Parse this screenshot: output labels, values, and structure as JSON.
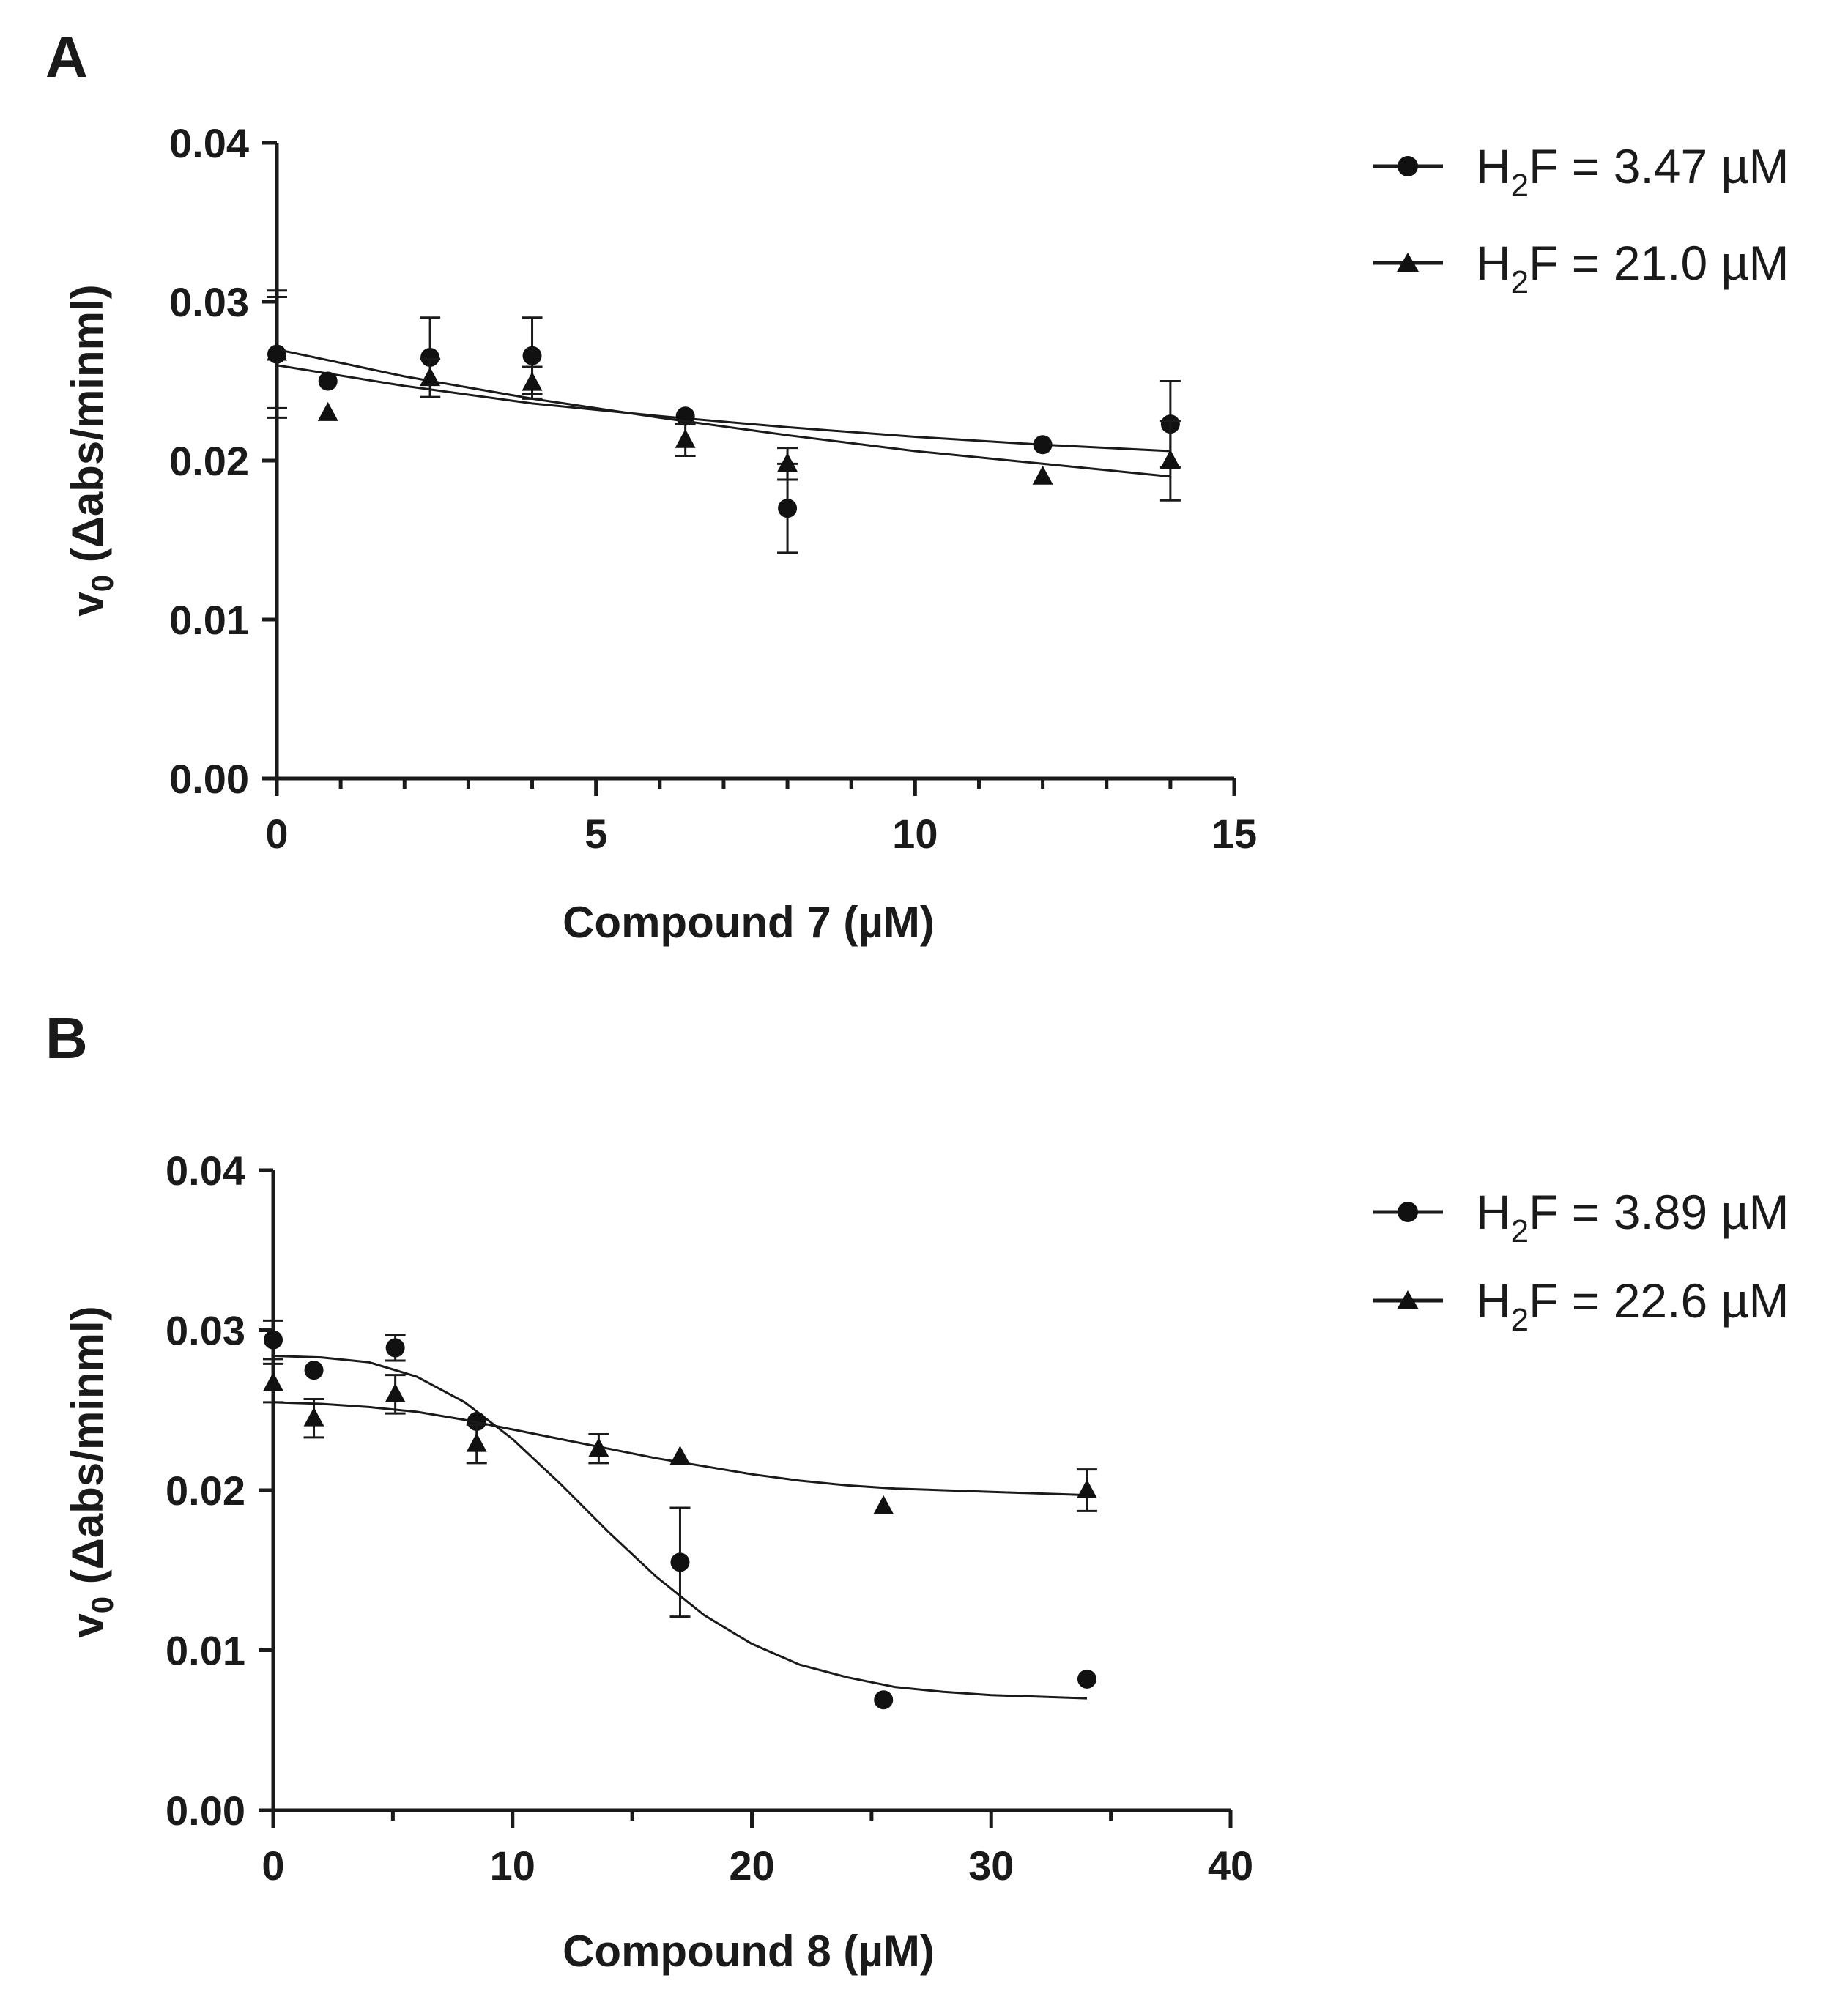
{
  "chart_data": [
    {
      "panel": "A",
      "type": "scatter",
      "xlabel": "Compound 7 (µM)",
      "ylabel": "v0 (Δabs/minml)",
      "ylabel_main": "v",
      "ylabel_sub": "0",
      "ylabel_rest": " (Δabs/minml)",
      "xlim": [
        0,
        15
      ],
      "ylim": [
        0,
        0.04
      ],
      "x_ticks": [
        0,
        5,
        10,
        15
      ],
      "x_tick_labels": [
        "0",
        "5",
        "10",
        "15"
      ],
      "x_minor_ticks": [
        1,
        2,
        3,
        4,
        6,
        7,
        8,
        9,
        11,
        12,
        13,
        14
      ],
      "y_ticks": [
        0,
        0.01,
        0.02,
        0.03,
        0.04
      ],
      "y_tick_labels": [
        "0.00",
        "0.01",
        "0.02",
        "0.03",
        "0.04"
      ],
      "legend_position": "right",
      "series": [
        {
          "name": "H2F = 3.47 µM",
          "legend_main": "H",
          "legend_sub": "2",
          "legend_rest": "F = 3.47 µM",
          "marker": "circle",
          "x": [
            0,
            0.8,
            2.4,
            4.0,
            6.4,
            8.0,
            12.0,
            14.0
          ],
          "y": [
            0.0267,
            0.025,
            0.0265,
            0.0266,
            0.0228,
            0.017,
            0.021,
            0.0223
          ],
          "err": [
            0.004,
            0,
            0.0025,
            0.0024,
            0,
            0.0028,
            0,
            0.0027
          ],
          "fit": {
            "x": [
              0,
              2,
              4,
              6,
              8,
              10,
              12,
              14
            ],
            "y": [
              0.026,
              0.0247,
              0.0236,
              0.0228,
              0.0221,
              0.0215,
              0.021,
              0.0206
            ]
          }
        },
        {
          "name": "H2F = 21.0 µM",
          "legend_main": "H",
          "legend_sub": "2",
          "legend_rest": "F = 21.0 µM",
          "marker": "triangle",
          "x": [
            0,
            0.8,
            2.4,
            4.0,
            6.4,
            8.0,
            12.0,
            14.0
          ],
          "y": [
            0.0268,
            0.023,
            0.0252,
            0.0249,
            0.0213,
            0.0198,
            0.019,
            0.02
          ],
          "err": [
            0.0035,
            0,
            0.0012,
            0.001,
            0.001,
            0.001,
            0,
            0.0025
          ],
          "fit": {
            "x": [
              0,
              2,
              4,
              6,
              8,
              10,
              12,
              14
            ],
            "y": [
              0.027,
              0.0253,
              0.0239,
              0.0227,
              0.0216,
              0.0206,
              0.0198,
              0.019
            ]
          }
        }
      ]
    },
    {
      "panel": "B",
      "type": "scatter",
      "xlabel": "Compound 8 (µM)",
      "ylabel": "v0 (Δabs/minml)",
      "ylabel_main": "v",
      "ylabel_sub": "0",
      "ylabel_rest": " (Δabs/minml)",
      "xlim": [
        0,
        40
      ],
      "ylim": [
        0,
        0.04
      ],
      "x_ticks": [
        0,
        10,
        20,
        30,
        40
      ],
      "x_tick_labels": [
        "0",
        "10",
        "20",
        "30",
        "40"
      ],
      "x_minor_ticks": [
        5,
        15,
        25,
        35
      ],
      "y_ticks": [
        0,
        0.01,
        0.02,
        0.03,
        0.04
      ],
      "y_tick_labels": [
        "0.00",
        "0.01",
        "0.02",
        "0.03",
        "0.04"
      ],
      "legend_position": "right",
      "series": [
        {
          "name": "H2F = 3.89 µM",
          "legend_main": "H",
          "legend_sub": "2",
          "legend_rest": "F = 3.89 µM",
          "marker": "circle",
          "x": [
            0,
            1.7,
            5.1,
            8.5,
            17.0,
            25.5,
            34.0
          ],
          "y": [
            0.0294,
            0.0275,
            0.0289,
            0.0243,
            0.0155,
            0.0069,
            0.0082
          ],
          "err": [
            0.0012,
            0,
            0.0008,
            0,
            0.0034,
            0,
            0
          ],
          "fit": {
            "x": [
              0,
              2,
              4,
              6,
              8,
              10,
              12,
              14,
              16,
              18,
              20,
              22,
              24,
              26,
              28,
              30,
              32,
              34
            ],
            "y": [
              0.0284,
              0.0283,
              0.028,
              0.0271,
              0.0255,
              0.0232,
              0.0204,
              0.0174,
              0.0146,
              0.0122,
              0.0104,
              0.0091,
              0.0083,
              0.0077,
              0.0074,
              0.0072,
              0.0071,
              0.007
            ]
          }
        },
        {
          "name": "H2F = 22.6 µM",
          "legend_main": "H",
          "legend_sub": "2",
          "legend_rest": "F = 22.6 µM",
          "marker": "triangle",
          "x": [
            0,
            1.7,
            5.1,
            8.5,
            13.6,
            17.0,
            25.5,
            34.0
          ],
          "y": [
            0.0267,
            0.0245,
            0.026,
            0.0229,
            0.0226,
            0.0221,
            0.019,
            0.02
          ],
          "err": [
            0.0012,
            0.0012,
            0.0012,
            0.0012,
            0.0009,
            0,
            0,
            0.0013
          ],
          "fit": {
            "x": [
              0,
              2,
              4,
              6,
              8,
              10,
              12,
              14,
              16,
              18,
              20,
              22,
              24,
              26,
              28,
              30,
              32,
              34
            ],
            "y": [
              0.0255,
              0.0254,
              0.0252,
              0.0249,
              0.0244,
              0.0238,
              0.0232,
              0.0226,
              0.022,
              0.0215,
              0.021,
              0.0206,
              0.0203,
              0.0201,
              0.02,
              0.0199,
              0.0198,
              0.0197
            ]
          }
        }
      ]
    }
  ]
}
